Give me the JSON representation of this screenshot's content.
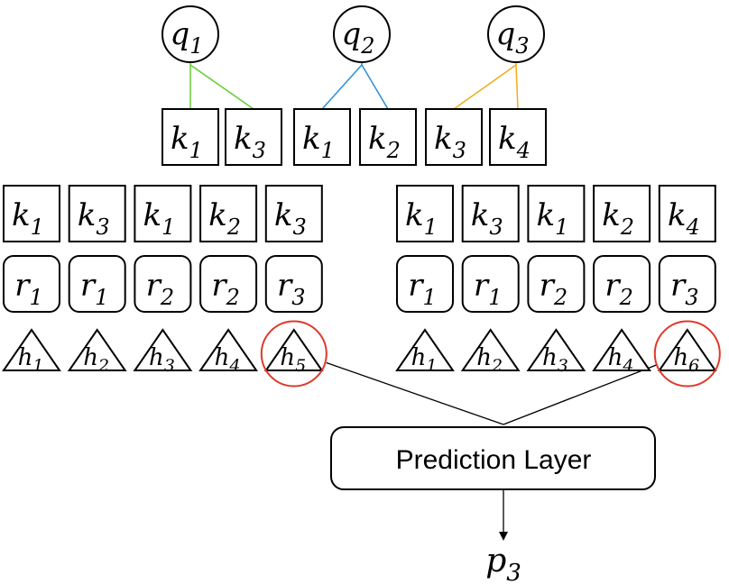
{
  "queries": [
    {
      "base": "q",
      "sub": "1",
      "keys": [
        0,
        1
      ],
      "color": "#66cc33"
    },
    {
      "base": "q",
      "sub": "2",
      "keys": [
        2,
        3
      ],
      "color": "#2b8fd6"
    },
    {
      "base": "q",
      "sub": "3",
      "keys": [
        4,
        5
      ],
      "color": "#f0ac1a"
    }
  ],
  "query_keys": [
    {
      "base": "k",
      "sub": "1"
    },
    {
      "base": "k",
      "sub": "3"
    },
    {
      "base": "k",
      "sub": "1"
    },
    {
      "base": "k",
      "sub": "2"
    },
    {
      "base": "k",
      "sub": "3"
    },
    {
      "base": "k",
      "sub": "4"
    }
  ],
  "sequences": [
    {
      "keys": [
        {
          "base": "k",
          "sub": "1"
        },
        {
          "base": "k",
          "sub": "3"
        },
        {
          "base": "k",
          "sub": "1"
        },
        {
          "base": "k",
          "sub": "2"
        },
        {
          "base": "k",
          "sub": "3"
        }
      ],
      "responses": [
        {
          "base": "r",
          "sub": "1"
        },
        {
          "base": "r",
          "sub": "1"
        },
        {
          "base": "r",
          "sub": "2"
        },
        {
          "base": "r",
          "sub": "2"
        },
        {
          "base": "r",
          "sub": "3"
        }
      ],
      "hidden": [
        {
          "base": "h",
          "sub": "1"
        },
        {
          "base": "h",
          "sub": "2"
        },
        {
          "base": "h",
          "sub": "3"
        },
        {
          "base": "h",
          "sub": "4"
        },
        {
          "base": "h",
          "sub": "5"
        }
      ],
      "highlight_index": 4
    },
    {
      "keys": [
        {
          "base": "k",
          "sub": "1"
        },
        {
          "base": "k",
          "sub": "3"
        },
        {
          "base": "k",
          "sub": "1"
        },
        {
          "base": "k",
          "sub": "2"
        },
        {
          "base": "k",
          "sub": "4"
        }
      ],
      "responses": [
        {
          "base": "r",
          "sub": "1"
        },
        {
          "base": "r",
          "sub": "1"
        },
        {
          "base": "r",
          "sub": "2"
        },
        {
          "base": "r",
          "sub": "2"
        },
        {
          "base": "r",
          "sub": "3"
        }
      ],
      "hidden": [
        {
          "base": "h",
          "sub": "1"
        },
        {
          "base": "h",
          "sub": "2"
        },
        {
          "base": "h",
          "sub": "3"
        },
        {
          "base": "h",
          "sub": "4"
        },
        {
          "base": "h",
          "sub": "6"
        }
      ],
      "highlight_index": 4
    }
  ],
  "prediction_layer": {
    "label": "Prediction Layer"
  },
  "output": {
    "base": "p",
    "sub": "3"
  },
  "colors": {
    "highlight": "#e0392b",
    "stroke": "#000000"
  }
}
